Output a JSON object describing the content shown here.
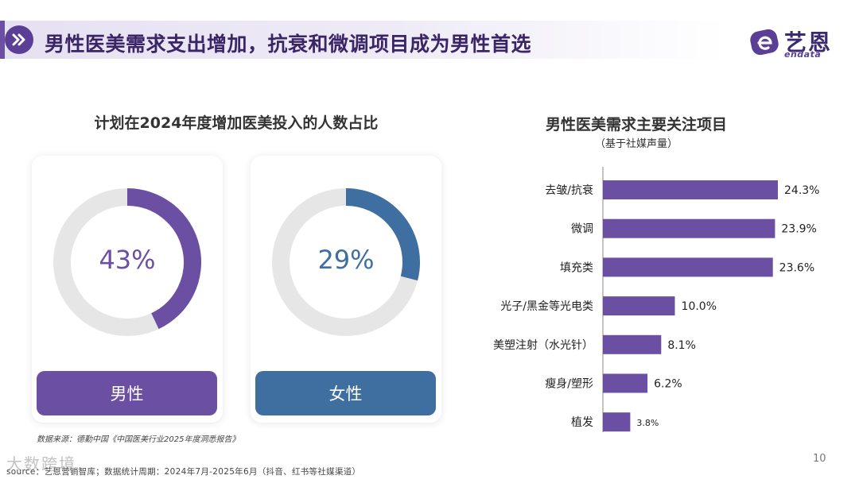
{
  "header": {
    "title": "男性医美需求支出增加，抗衰和微调项目成为男性首选",
    "icon": "double-chevron-right-icon",
    "accent_color": "#5b3f97"
  },
  "logo": {
    "cn": "艺恩",
    "en": "endata"
  },
  "left_panel": {
    "title": "计划在2024年度增加医美投入的人数占比",
    "cards": [
      {
        "label": "男性",
        "percent_text": "43%",
        "color": "#6a4fa3"
      },
      {
        "label": "女性",
        "percent_text": "29%",
        "color": "#3f6fa0"
      }
    ]
  },
  "right_panel": {
    "title": "男性医美需求主要关注项目",
    "subtitle": "（基于社媒声量）"
  },
  "footer": {
    "source_note": "数据来源：德勤中国《中国医美行业2025年度洞悉报告》",
    "source_line": "source：艺恩营销智库；数据统计周期：2024年7月-2025年6月（抖音、红书等社媒渠道）",
    "watermark": "大数跨境",
    "page_number": "10"
  },
  "chart_data": [
    {
      "type": "pie",
      "title": "计划在2024年度增加医美投入的人数占比",
      "series": [
        {
          "name": "男性",
          "value": 43,
          "remainder": 57,
          "color": "#6a4fa3",
          "track_color": "#e6e6e6"
        },
        {
          "name": "女性",
          "value": 29,
          "remainder": 71,
          "color": "#3f6fa0",
          "track_color": "#e6e6e6"
        }
      ]
    },
    {
      "type": "bar",
      "orientation": "horizontal",
      "title": "男性医美需求主要关注项目",
      "subtitle": "（基于社媒声量）",
      "categories": [
        "去皱/抗衰",
        "微调",
        "填充类",
        "光子/黑金等光电类",
        "美塑注射（水光针）",
        "瘦身/塑形",
        "植发"
      ],
      "values": [
        24.3,
        23.9,
        23.6,
        10.0,
        8.1,
        6.2,
        3.8
      ],
      "value_labels": [
        "24.3%",
        "23.9%",
        "23.6%",
        "10.0%",
        "8.1%",
        "6.2%",
        "3.8%"
      ],
      "unit": "%",
      "xlim": [
        0,
        24.3
      ],
      "bar_color": "#6a4fa3",
      "grid": false
    }
  ]
}
